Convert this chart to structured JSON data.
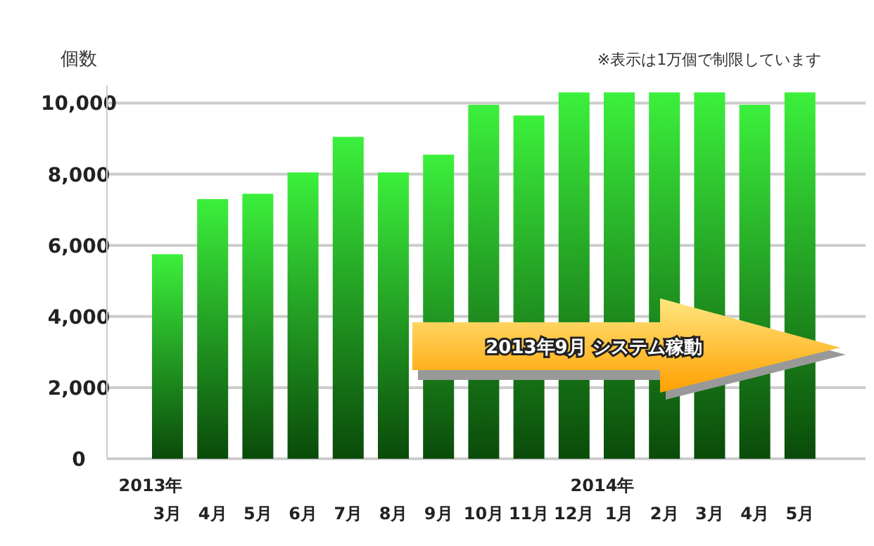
{
  "chart_data": {
    "type": "bar",
    "ylabel": "個数",
    "categories": [
      "2013年\n3月",
      "4月",
      "5月",
      "6月",
      "7月",
      "8月",
      "9月",
      "10月",
      "11月",
      "12月",
      "2014年\n1月",
      "2月",
      "3月",
      "4月",
      "5月"
    ],
    "values": [
      5750,
      7300,
      7450,
      8050,
      9050,
      8050,
      8550,
      9950,
      9650,
      10300,
      10300,
      10300,
      10300,
      9950,
      10300
    ],
    "color": "#3cf03c",
    "ylim": [
      0,
      10500
    ],
    "yticks": [
      0,
      {
        "value": 2000,
        "label": "2,000"
      },
      {
        "value": 4000,
        "label": "4,000"
      },
      {
        "value": 6000,
        "label": "6,000"
      },
      {
        "value": 8000,
        "label": "8,000"
      },
      {
        "value": 10000,
        "label": "10,000"
      }
    ],
    "grid": "y",
    "annotations": [
      "※表示は1万個で制限しています",
      "2013年9月 システム稼動"
    ]
  }
}
